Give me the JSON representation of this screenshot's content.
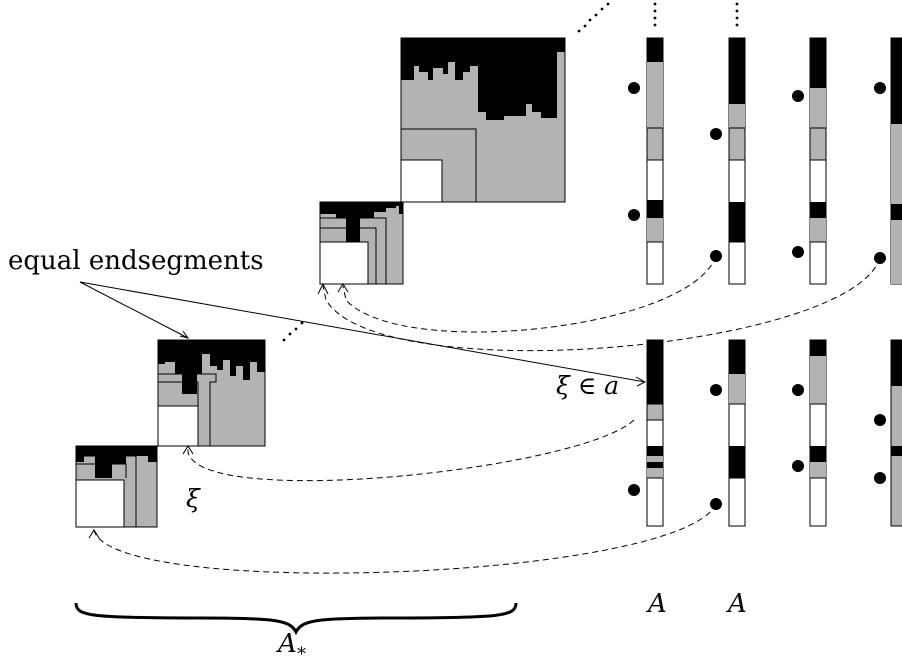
{
  "labels": {
    "equal_endsegments": "equal endsegments",
    "xi_in_a": "ξ ∈ a",
    "xi": "ξ",
    "A_left": "A",
    "A_right": "A",
    "A_star": "A",
    "A_star_sub": "*"
  },
  "colors": {
    "gray": "#b3b3b3",
    "black": "#000000",
    "white": "#ffffff",
    "line": "#000000"
  }
}
